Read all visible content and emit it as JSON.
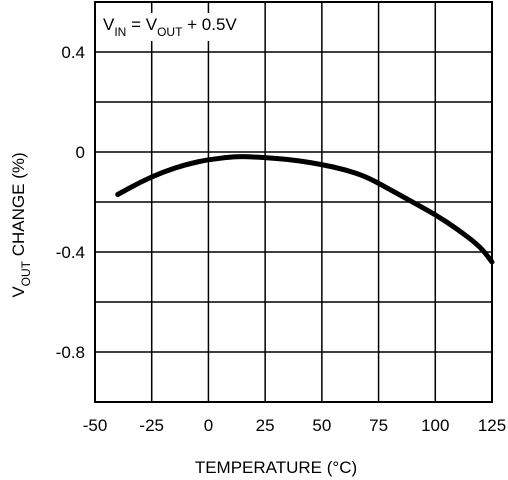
{
  "chart_data": {
    "type": "line",
    "title": "",
    "annotation": {
      "parts": [
        "V",
        "IN",
        " = V",
        "OUT",
        " + 0.5V"
      ]
    },
    "xlabel": "TEMPERATURE (°C)",
    "ylabel": {
      "parts": [
        "V",
        "OUT",
        " CHANGE (%)"
      ]
    },
    "xlim": [
      -50,
      125
    ],
    "ylim": [
      -1.0,
      0.6
    ],
    "x_ticks": [
      -50,
      -25,
      0,
      25,
      50,
      75,
      100,
      125
    ],
    "x_tick_labels": [
      "-50",
      "-25",
      "0",
      "25",
      "50",
      "75",
      "100",
      "125"
    ],
    "y_ticks": [
      0.4,
      0,
      -0.4,
      -0.8
    ],
    "y_tick_labels": [
      "0.4",
      "0",
      "-0.4",
      "-0.8"
    ],
    "grid": true,
    "series": [
      {
        "color": "#000000",
        "x": [
          -40,
          -30,
          -20,
          -10,
          0,
          10,
          15,
          20,
          30,
          40,
          50,
          60,
          70,
          80,
          90,
          100,
          110,
          120,
          125
        ],
        "y": [
          -0.17,
          -0.12,
          -0.08,
          -0.05,
          -0.03,
          -0.02,
          -0.018,
          -0.02,
          -0.025,
          -0.035,
          -0.05,
          -0.07,
          -0.1,
          -0.15,
          -0.2,
          -0.25,
          -0.31,
          -0.38,
          -0.44
        ]
      }
    ]
  }
}
